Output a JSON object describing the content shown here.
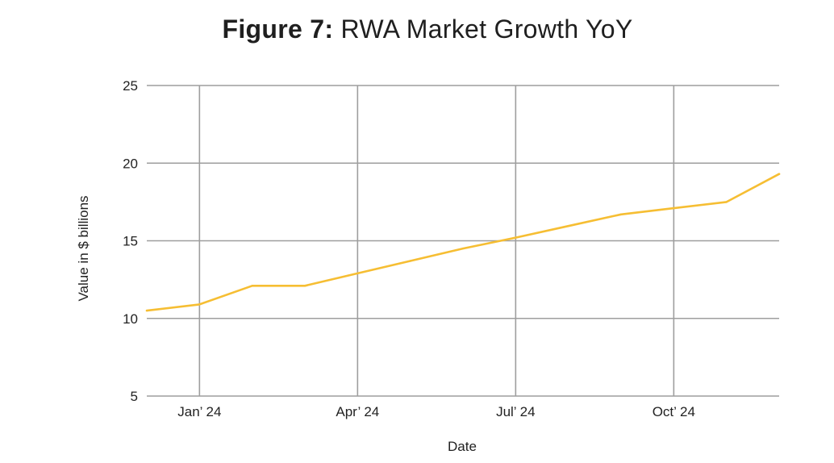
{
  "chart_data": {
    "type": "line",
    "title_prefix": "Figure 7:",
    "title": "RWA Market Growth YoY",
    "xlabel": "Date",
    "ylabel": "Value in $ billions",
    "ylim": [
      5,
      25
    ],
    "yticks": [
      5,
      10,
      15,
      20,
      25
    ],
    "xlim": [
      "2023-12",
      "2024-12"
    ],
    "xticks": [
      {
        "label": "Jan’ 24",
        "x": "2024-01"
      },
      {
        "label": "Apr’ 24",
        "x": "2024-04"
      },
      {
        "label": "Jul’ 24",
        "x": "2024-07"
      },
      {
        "label": "Oct’ 24",
        "x": "2024-10"
      }
    ],
    "grid": true,
    "line_color": "#F6BE33",
    "grid_color": "#9E9E9E",
    "series": [
      {
        "x": [
          "2023-12",
          "2024-01",
          "2024-02",
          "2024-03",
          "2024-04",
          "2024-05",
          "2024-06",
          "2024-07",
          "2024-08",
          "2024-09",
          "2024-10",
          "2024-11",
          "2024-12"
        ],
        "values": [
          10.5,
          10.9,
          12.1,
          12.1,
          12.9,
          13.7,
          14.5,
          15.2,
          15.95,
          16.7,
          17.1,
          17.5,
          19.3
        ]
      }
    ]
  }
}
